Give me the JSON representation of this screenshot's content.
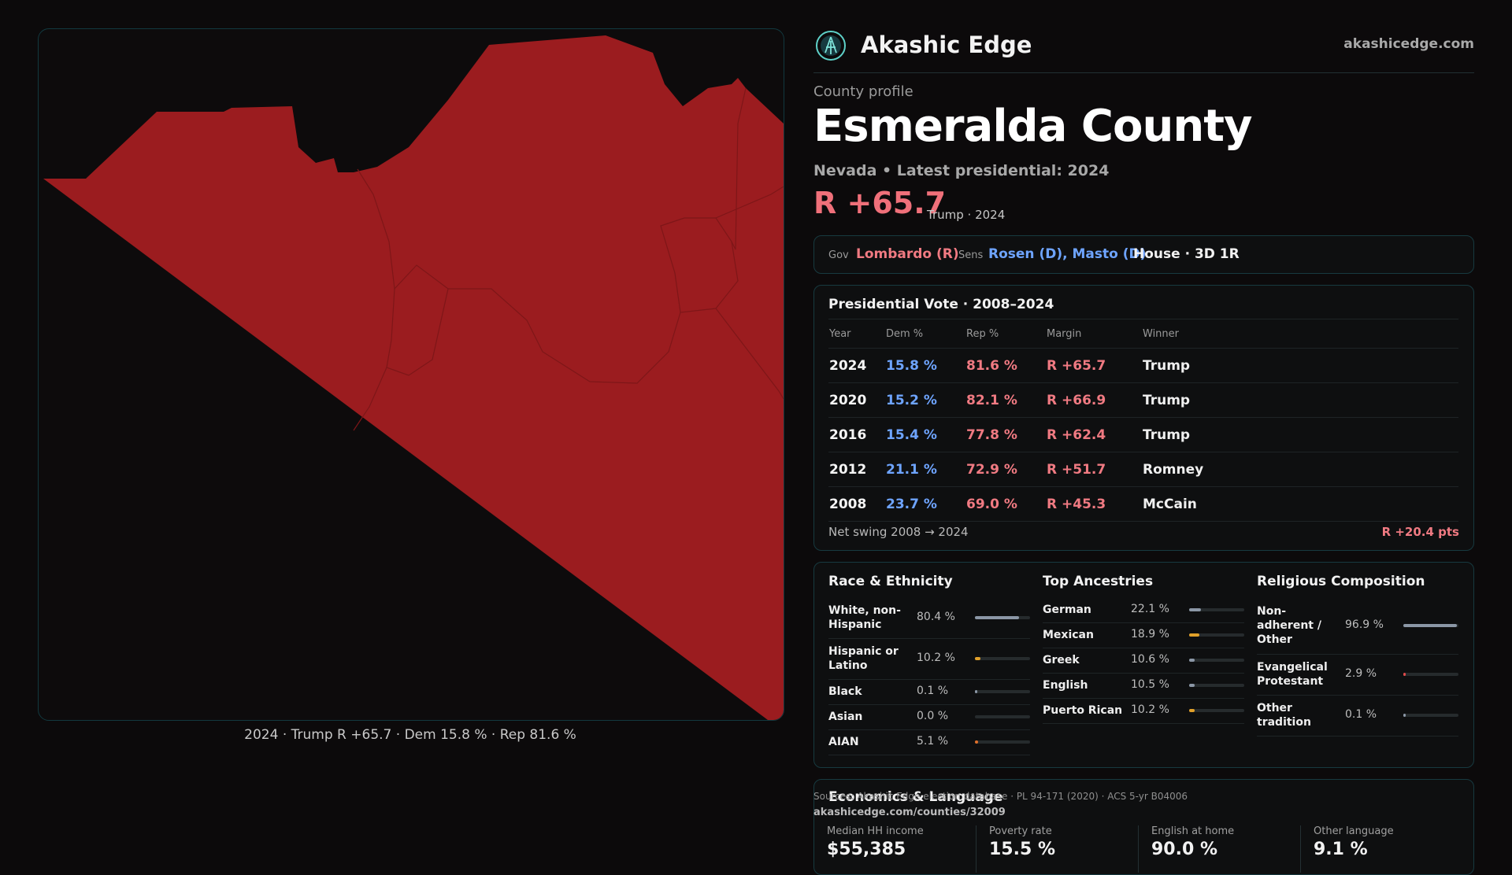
{
  "map": {
    "caption": "2024 · Trump R +65.7 · Dem 15.8 % · Rep 81.6 %",
    "fill_color": "#9b1c1f",
    "border_color": "#12393f"
  },
  "header": {
    "brand": "Akashic Edge",
    "domain": "akashicedge.com"
  },
  "profile": {
    "label": "County profile",
    "county": "Esmeralda County",
    "subtitle": "Nevada • Latest presidential: 2024",
    "margin": "R +65.7",
    "margin_note": "Trump · 2024"
  },
  "officials": {
    "gov_key": "Gov",
    "gov": "Lombardo (R)",
    "sens_key": "Sens",
    "sens": "Rosen (D), Masto (D)",
    "house": "House · 3D 1R"
  },
  "presidential": {
    "title": "Presidential Vote · 2008–2024",
    "columns": [
      "Year",
      "Dem %",
      "Rep %",
      "Margin",
      "Winner"
    ],
    "rows": [
      {
        "year": "2024",
        "dem": "15.8 %",
        "rep": "81.6 %",
        "margin": "R +65.7",
        "winner": "Trump"
      },
      {
        "year": "2020",
        "dem": "15.2 %",
        "rep": "82.1 %",
        "margin": "R +66.9",
        "winner": "Trump"
      },
      {
        "year": "2016",
        "dem": "15.4 %",
        "rep": "77.8 %",
        "margin": "R +62.4",
        "winner": "Trump"
      },
      {
        "year": "2012",
        "dem": "21.1 %",
        "rep": "72.9 %",
        "margin": "R +51.7",
        "winner": "Romney"
      },
      {
        "year": "2008",
        "dem": "23.7 %",
        "rep": "69.0 %",
        "margin": "R +45.3",
        "winner": "McCain"
      }
    ],
    "swing_label": "Net swing 2008 → 2024",
    "swing_value": "R +20.4 pts"
  },
  "demographics": {
    "race": {
      "title": "Race & Ethnicity",
      "items": [
        {
          "label": "White, non-Hispanic",
          "value": "80.4 %",
          "fraction": 0.804,
          "color": "#8b97a6"
        },
        {
          "label": "Hispanic or Latino",
          "value": "10.2 %",
          "fraction": 0.102,
          "color": "#e0a02a"
        },
        {
          "label": "Black",
          "value": "0.1 %",
          "fraction": 0.001,
          "color": "#8b97a6"
        },
        {
          "label": "Asian",
          "value": "0.0 %",
          "fraction": 0.0,
          "color": "#8b97a6"
        },
        {
          "label": "AIAN",
          "value": "5.1 %",
          "fraction": 0.051,
          "color": "#e0702a"
        }
      ]
    },
    "ancestry": {
      "title": "Top Ancestries",
      "items": [
        {
          "label": "German",
          "value": "22.1 %",
          "fraction": 0.221,
          "color": "#8b97a6"
        },
        {
          "label": "Mexican",
          "value": "18.9 %",
          "fraction": 0.189,
          "color": "#e0a02a"
        },
        {
          "label": "Greek",
          "value": "10.6 %",
          "fraction": 0.106,
          "color": "#8b97a6"
        },
        {
          "label": "English",
          "value": "10.5 %",
          "fraction": 0.105,
          "color": "#8b97a6"
        },
        {
          "label": "Puerto Rican",
          "value": "10.2 %",
          "fraction": 0.102,
          "color": "#e0a02a"
        }
      ]
    },
    "religion": {
      "title": "Religious Composition",
      "items": [
        {
          "label": "Non-adherent / Other",
          "value": "96.9 %",
          "fraction": 0.969,
          "color": "#8b97a6"
        },
        {
          "label": "Evangelical Protestant",
          "value": "2.9 %",
          "fraction": 0.029,
          "color": "#e04a4a"
        },
        {
          "label": "Other tradition",
          "value": "0.1 %",
          "fraction": 0.001,
          "color": "#8b97a6"
        }
      ]
    }
  },
  "economics": {
    "title": "Economics & Language",
    "cells": [
      {
        "label": "Median HH income",
        "value": "$55,385"
      },
      {
        "label": "Poverty rate",
        "value": "15.5 %"
      },
      {
        "label": "English at home",
        "value": "90.0 %"
      },
      {
        "label": "Other language",
        "value": "9.1 %"
      }
    ]
  },
  "footer": {
    "source": "Sources: Akashic Edge election database · PL 94-171 (2020) · ACS 5-yr B04006",
    "url": "akashicedge.com/counties/32009"
  }
}
